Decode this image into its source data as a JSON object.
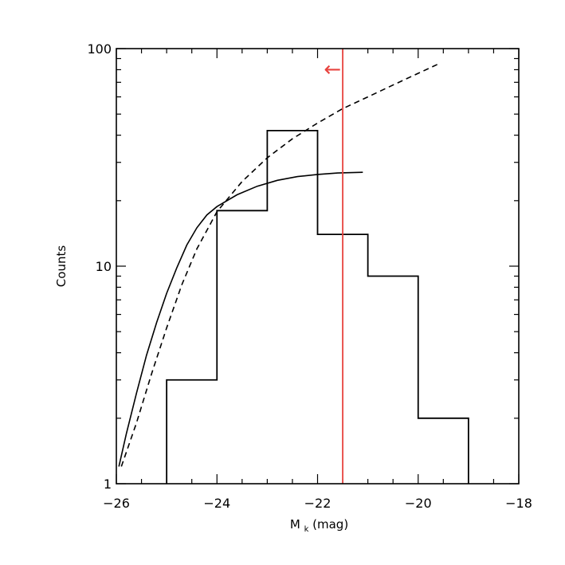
{
  "chart_data": {
    "type": "histogram",
    "title": "",
    "xlabel_main": "M",
    "xlabel_sub": "k",
    "xlabel_unit": "(mag)",
    "ylabel": "Counts",
    "xlim": [
      -26,
      -18
    ],
    "ylim": [
      1,
      100
    ],
    "yscale": "log",
    "grid": false,
    "x_ticks": [
      -26,
      -24,
      -22,
      -20,
      -18
    ],
    "x_tick_labels": [
      "−26",
      "−24",
      "−22",
      "−20",
      "−18"
    ],
    "y_ticks": [
      1,
      10,
      100
    ],
    "y_tick_labels": [
      "1",
      "10",
      "100"
    ],
    "histogram": {
      "bin_edges": [
        -26,
        -25,
        -24,
        -23,
        -22,
        -21,
        -20,
        -19
      ],
      "counts": [
        1,
        3,
        18,
        42,
        14,
        9,
        2
      ]
    },
    "series": [
      {
        "style": "solid",
        "color": "#000000",
        "x": [
          -25.95,
          -25.8,
          -25.6,
          -25.4,
          -25.2,
          -25.0,
          -24.8,
          -24.6,
          -24.4,
          -24.2,
          -24.0,
          -23.6,
          -23.2,
          -22.8,
          -22.4,
          -22.0,
          -21.6,
          -21.1
        ],
        "y": [
          1.2,
          1.7,
          2.6,
          3.9,
          5.5,
          7.5,
          9.8,
          12.5,
          15.0,
          17.2,
          18.8,
          21.3,
          23.3,
          24.8,
          25.8,
          26.4,
          26.8,
          27.0
        ]
      },
      {
        "style": "dashed",
        "color": "#000000",
        "x": [
          -25.9,
          -25.6,
          -25.3,
          -25.0,
          -24.7,
          -24.4,
          -24.0,
          -23.5,
          -23.0,
          -22.5,
          -22.0,
          -21.5,
          -21.0,
          -20.5,
          -20.0,
          -19.6
        ],
        "y": [
          1.2,
          1.9,
          3.2,
          5.2,
          8.2,
          12.0,
          17.8,
          24.5,
          31.5,
          38.5,
          45.5,
          53.0,
          60.0,
          68.0,
          77.0,
          85.0
        ]
      }
    ],
    "vline": {
      "x": -21.5,
      "color": "#e8433f"
    },
    "arrow": {
      "glyph": "←",
      "color": "#e8433f",
      "y": 80
    }
  }
}
